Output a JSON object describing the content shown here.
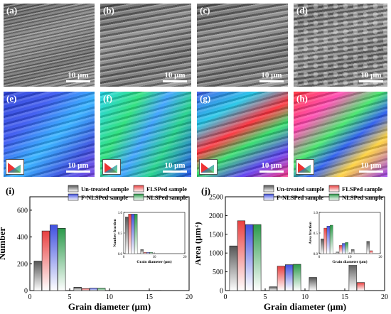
{
  "micrographs": [
    {
      "label": "(a)",
      "scale": "10 μm",
      "kind": "sem"
    },
    {
      "label": "(b)",
      "scale": "10 μm",
      "kind": "sem"
    },
    {
      "label": "(c)",
      "scale": "10 μm",
      "kind": "sem"
    },
    {
      "label": "(d)",
      "scale": "10 μm",
      "kind": "sem"
    },
    {
      "label": "(e)",
      "scale": "10 μm",
      "kind": "ebsd"
    },
    {
      "label": "(f)",
      "scale": "10 μm",
      "kind": "ebsd"
    },
    {
      "label": "(g)",
      "scale": "10 μm",
      "kind": "ebsd"
    },
    {
      "label": "(h)",
      "scale": "10 μm",
      "kind": "ebsd"
    }
  ],
  "chart_data": [
    {
      "type": "bar",
      "panel": "(i)",
      "xlabel": "Grain diameter (μm)",
      "ylabel": "Number",
      "xlim": [
        0,
        20
      ],
      "ylim": [
        0,
        700
      ],
      "xticks": [
        0,
        5,
        10,
        15,
        20
      ],
      "yticks": [
        0,
        200,
        400,
        600
      ],
      "x": [
        1,
        2,
        3,
        4,
        6,
        7,
        8,
        9,
        16
      ],
      "series": [
        {
          "name": "Un-treated sample",
          "color": "#555555",
          "values": [
            220,
            null,
            null,
            null,
            25,
            null,
            null,
            null,
            2
          ]
        },
        {
          "name": "FLSPed sample",
          "color": "#e84040",
          "values": [
            null,
            445,
            null,
            null,
            null,
            15,
            null,
            null,
            null
          ]
        },
        {
          "name": "F-NLSPed sample",
          "color": "#4050e0",
          "values": [
            null,
            null,
            490,
            null,
            null,
            null,
            18,
            null,
            null
          ]
        },
        {
          "name": "NLSPed sample",
          "color": "#2a9a4a",
          "values": [
            null,
            null,
            null,
            465,
            null,
            null,
            null,
            17,
            null
          ]
        }
      ],
      "inset": {
        "type": "bar",
        "xlabel": "Grain diameter (μm)",
        "ylabel": "Number fraction",
        "xlim": [
          0,
          20
        ],
        "ylim": [
          0,
          1.0
        ],
        "xticks": [
          0,
          10,
          20
        ],
        "yticks": [
          0.0,
          0.5,
          1.0
        ],
        "x": [
          1,
          2,
          3,
          4,
          6,
          7,
          8,
          9
        ],
        "series": [
          {
            "name": "Un-treated sample",
            "values": [
              0.89,
              null,
              null,
              null,
              0.1,
              null,
              null,
              null
            ]
          },
          {
            "name": "FLSPed sample",
            "values": [
              null,
              0.96,
              null,
              null,
              null,
              0.03,
              null,
              null
            ]
          },
          {
            "name": "F-NLSPed sample",
            "values": [
              null,
              null,
              0.96,
              null,
              null,
              null,
              0.03,
              null
            ]
          },
          {
            "name": "NLSPed sample",
            "values": [
              null,
              null,
              null,
              0.96,
              null,
              null,
              null,
              0.03
            ]
          }
        ]
      }
    },
    {
      "type": "bar",
      "panel": "(j)",
      "xlabel": "Grain diameter (μm)",
      "ylabel": "Area (μm²)",
      "xlim": [
        0,
        20
      ],
      "ylim": [
        0,
        2500
      ],
      "xticks": [
        0,
        5,
        10,
        15,
        20
      ],
      "yticks": [
        0,
        500,
        1000,
        1500,
        2000,
        2500
      ],
      "x": [
        1,
        2,
        3,
        4,
        6,
        7,
        8,
        9,
        11,
        16,
        17
      ],
      "series": [
        {
          "name": "Un-treated sample",
          "color": "#555555",
          "values": [
            1190,
            null,
            null,
            null,
            100,
            null,
            null,
            null,
            350,
            730,
            null
          ]
        },
        {
          "name": "FLSPed sample",
          "color": "#e84040",
          "values": [
            null,
            1860,
            null,
            null,
            null,
            650,
            null,
            null,
            null,
            null,
            215
          ]
        },
        {
          "name": "F-NLSPed sample",
          "color": "#4050e0",
          "values": [
            null,
            null,
            1760,
            null,
            null,
            null,
            690,
            null,
            null,
            null,
            null
          ]
        },
        {
          "name": "NLSPed sample",
          "color": "#2a9a4a",
          "values": [
            null,
            null,
            null,
            1760,
            null,
            null,
            null,
            700,
            null,
            null,
            null
          ]
        }
      ],
      "inset": {
        "type": "bar",
        "xlabel": "Grain diameter (μm)",
        "ylabel": "Area fraction",
        "xlim": [
          0,
          20
        ],
        "ylim": [
          0,
          1.0
        ],
        "xticks": [
          0,
          10,
          20
        ],
        "yticks": [
          0.0,
          0.5,
          1.0
        ],
        "x": [
          1,
          2,
          3,
          4,
          6,
          7,
          8,
          9,
          11,
          16,
          17
        ],
        "series": [
          {
            "name": "Un-treated sample",
            "values": [
              0.36,
              null,
              null,
              null,
              0.04,
              null,
              null,
              null,
              0.1,
              0.3,
              null
            ]
          },
          {
            "name": "FLSPed sample",
            "values": [
              null,
              0.62,
              null,
              null,
              null,
              0.2,
              null,
              null,
              null,
              null,
              0.07
            ]
          },
          {
            "name": "F-NLSPed sample",
            "values": [
              null,
              null,
              0.67,
              null,
              null,
              null,
              0.25,
              null,
              null,
              null,
              null
            ]
          },
          {
            "name": "NLSPed sample",
            "values": [
              null,
              null,
              null,
              0.69,
              null,
              null,
              null,
              0.27,
              null,
              null,
              null
            ]
          }
        ]
      }
    }
  ]
}
